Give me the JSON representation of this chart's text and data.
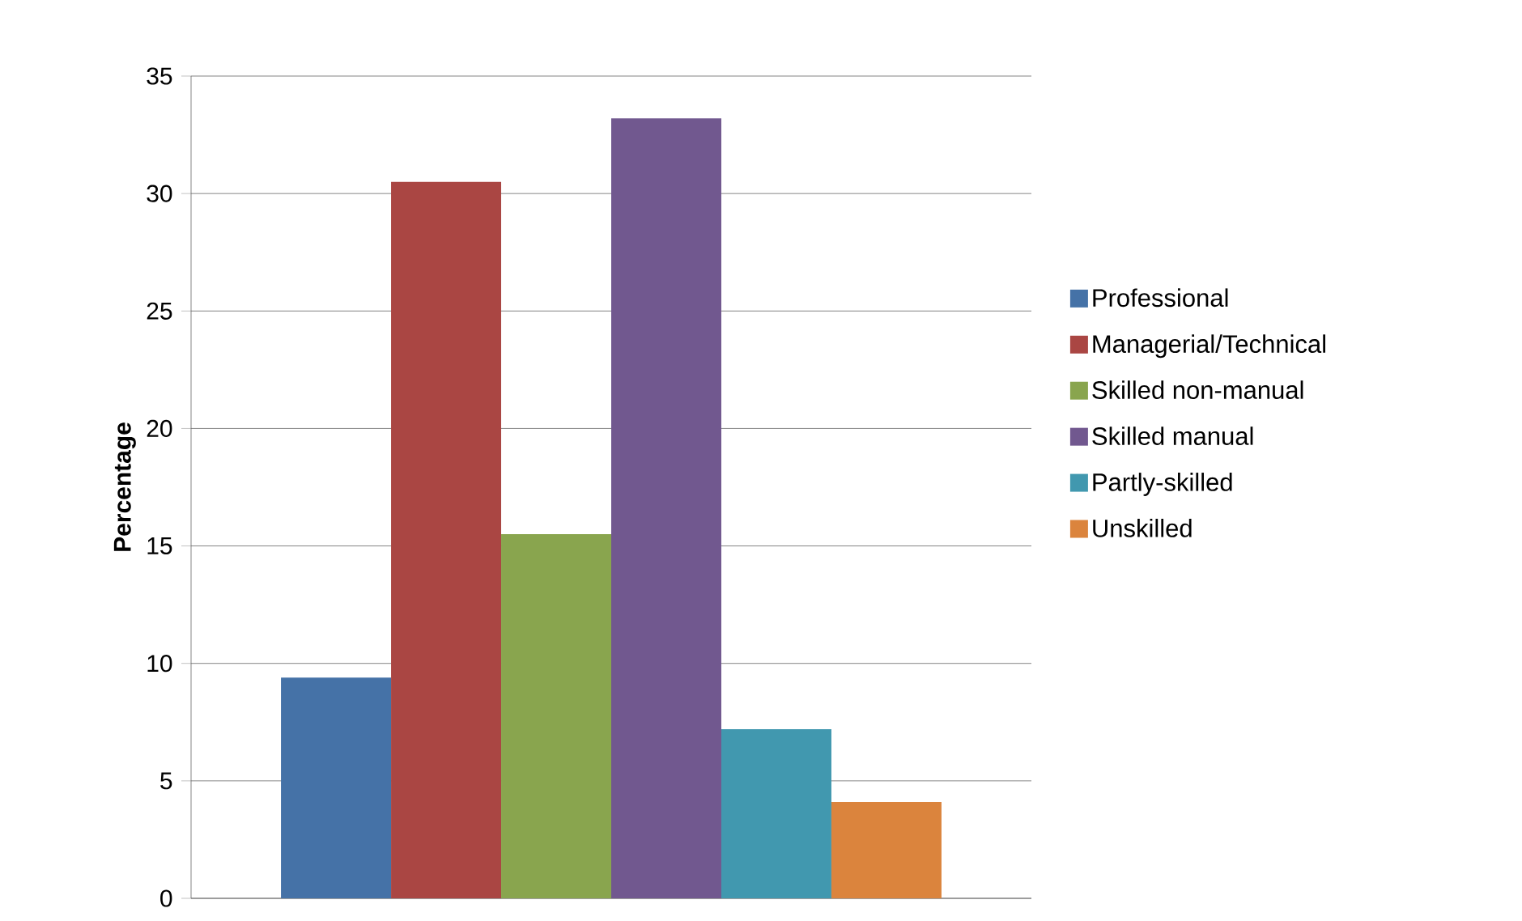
{
  "chart_data": {
    "type": "bar",
    "ylabel": "Percentage",
    "categories": [
      null
    ],
    "series": [
      {
        "name": "Professional",
        "color": "#4572a7",
        "values": [
          9.4
        ]
      },
      {
        "name": "Managerial/Technical",
        "color": "#aa4643",
        "values": [
          30.5
        ]
      },
      {
        "name": "Skilled non-manual",
        "color": "#89a54e",
        "values": [
          15.5
        ]
      },
      {
        "name": "Skilled manual",
        "color": "#71588f",
        "values": [
          33.2
        ]
      },
      {
        "name": "Partly-skilled",
        "color": "#4198af",
        "values": [
          7.2
        ]
      },
      {
        "name": "Unskilled",
        "color": "#db843d",
        "values": [
          4.1
        ]
      }
    ],
    "ylim": [
      0,
      35
    ],
    "yticks": [
      0,
      5,
      10,
      15,
      20,
      25,
      30,
      35
    ],
    "grid": "y",
    "legend": "right"
  }
}
